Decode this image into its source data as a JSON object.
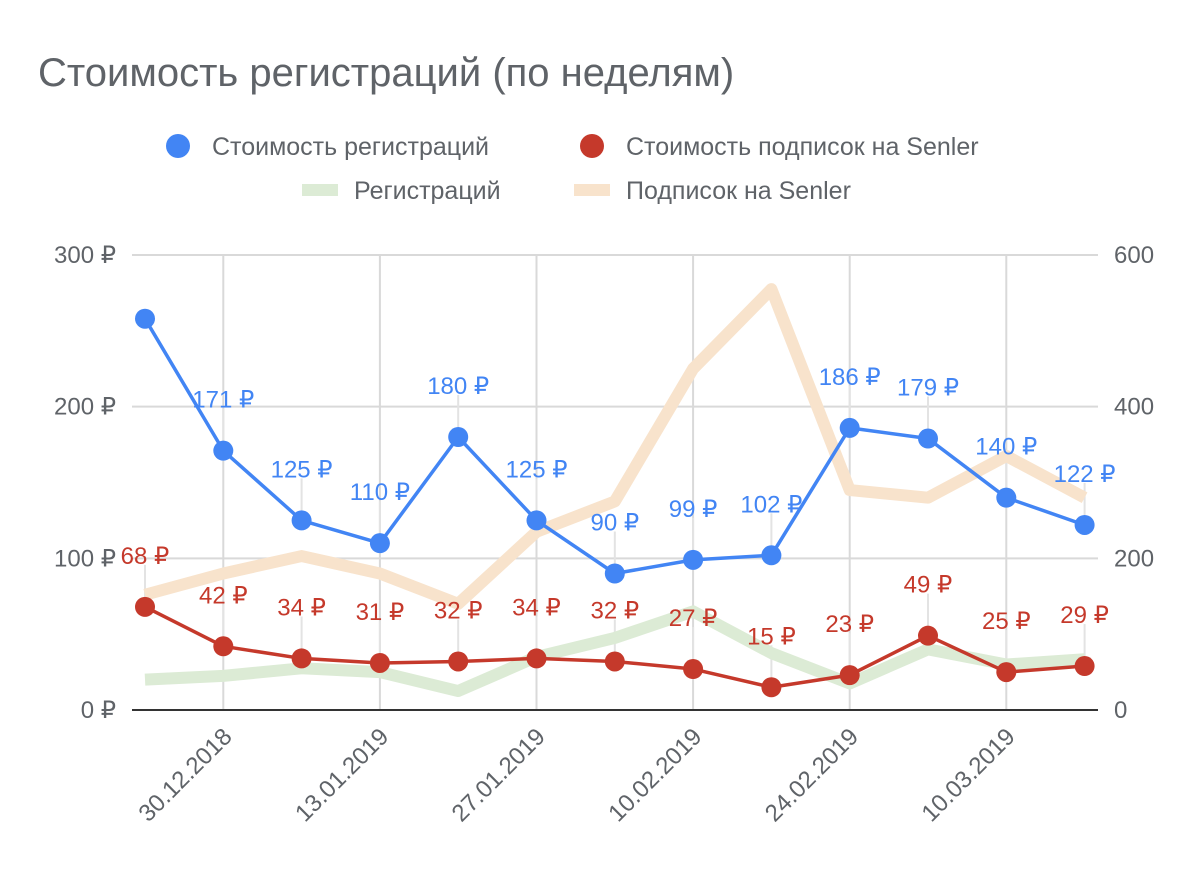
{
  "chart_data": {
    "type": "line",
    "title": "Стоимость регистраций (по неделям)",
    "categories": [
      "23.12.2018",
      "30.12.2018",
      "06.01.2019",
      "13.01.2019",
      "20.01.2019",
      "27.01.2019",
      "03.02.2019",
      "10.02.2019",
      "17.02.2019",
      "24.02.2019",
      "03.03.2019",
      "10.03.2019",
      "17.03.2019"
    ],
    "x_tick_labels": [
      "30.12.2018",
      "13.01.2019",
      "27.01.2019",
      "10.02.2019",
      "24.02.2019",
      "10.03.2019"
    ],
    "y_left": {
      "ticks": [
        "0 ₽",
        "100 ₽",
        "200 ₽",
        "300 ₽"
      ],
      "range": [
        0,
        300
      ]
    },
    "y_right": {
      "ticks": [
        "0",
        "200",
        "400",
        "600"
      ],
      "range": [
        0,
        600
      ]
    },
    "grid": true,
    "legend_position": "top",
    "series": [
      {
        "name": "Стоимость регистраций",
        "axis": "left",
        "color": "#4285f4",
        "style": "line-markers",
        "values": [
          258,
          171,
          125,
          110,
          180,
          125,
          90,
          99,
          102,
          186,
          179,
          140,
          122
        ],
        "labels": [
          "",
          "171 ₽",
          "125 ₽",
          "110 ₽",
          "180 ₽",
          "125 ₽",
          "90 ₽",
          "99 ₽",
          "102 ₽",
          "186 ₽",
          "179 ₽",
          "140 ₽",
          "122 ₽"
        ]
      },
      {
        "name": "Стоимость подписок на Senler",
        "axis": "left",
        "color": "#c5392b",
        "style": "line-markers",
        "values": [
          68,
          42,
          34,
          31,
          32,
          34,
          32,
          27,
          15,
          23,
          49,
          25,
          29
        ],
        "labels": [
          "68 ₽",
          "42 ₽",
          "34 ₽",
          "31 ₽",
          "32 ₽",
          "34 ₽",
          "32 ₽",
          "27 ₽",
          "15 ₽",
          "23 ₽",
          "49 ₽",
          "25 ₽",
          "29 ₽"
        ]
      },
      {
        "name": "Регистраций",
        "axis": "right",
        "color": "#dcebd5",
        "style": "thick-line",
        "values": [
          40,
          45,
          55,
          50,
          25,
          70,
          95,
          130,
          75,
          35,
          80,
          60,
          67
        ]
      },
      {
        "name": "Подписок на Senler",
        "axis": "right",
        "color": "#f8e3cc",
        "style": "thick-line",
        "values": [
          152,
          180,
          203,
          180,
          140,
          235,
          275,
          450,
          555,
          290,
          280,
          335,
          280
        ]
      }
    ]
  }
}
